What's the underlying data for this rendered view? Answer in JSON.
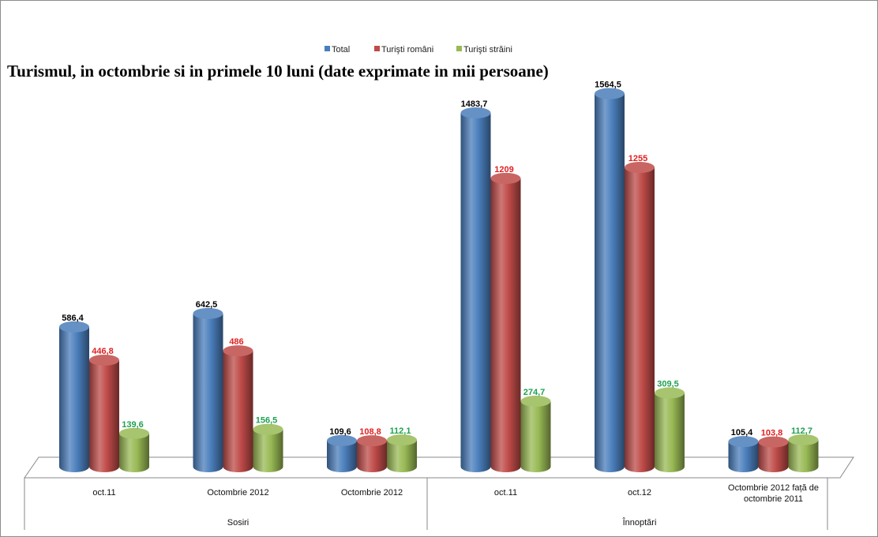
{
  "chart_data": {
    "type": "bar",
    "title": "Turismul, in octombrie si in primele 10 luni (date exprimate in mii persoane)",
    "categories": [
      "oct.11",
      "Octombrie  2012",
      "Octombrie 2012",
      "oct.11",
      "oct.12",
      "Octombrie 2012 față de octombrie 2011"
    ],
    "category_lines": [
      [
        "oct.11"
      ],
      [
        "Octombrie  2012"
      ],
      [
        "Octombrie 2012"
      ],
      [
        "oct.11"
      ],
      [
        "oct.12"
      ],
      [
        "Octombrie 2012 față de",
        "octombrie 2011"
      ]
    ],
    "groups": [
      {
        "label": "Sosiri",
        "span": [
          0,
          2
        ]
      },
      {
        "label": "Înnoptări",
        "span": [
          3,
          5
        ]
      }
    ],
    "series": [
      {
        "name": "Total",
        "color": "#4a7ebb",
        "label_color": "#000000",
        "values": [
          586.4,
          642.5,
          109.6,
          1483.7,
          1564.5,
          105.4
        ],
        "labels": [
          "586,4",
          "642,5",
          "109,6",
          "1483,7",
          "1564,5",
          "105,4"
        ]
      },
      {
        "name": "Turişti români",
        "color": "#be4b48",
        "label_color": "#e02020",
        "values": [
          446.8,
          486,
          108.8,
          1209,
          1255,
          103.8
        ],
        "labels": [
          "446,8",
          "486",
          "108,8",
          "1209",
          "1255",
          "103,8"
        ]
      },
      {
        "name": "Turişti străini",
        "color": "#98b954",
        "label_color": "#20a050",
        "values": [
          139.6,
          156.5,
          112.1,
          274.7,
          309.5,
          112.7
        ],
        "labels": [
          "139,6",
          "156,5",
          "112,1",
          "274,7",
          "309,5",
          "112,7"
        ]
      }
    ],
    "legend_position": "top-center",
    "grid": false
  }
}
